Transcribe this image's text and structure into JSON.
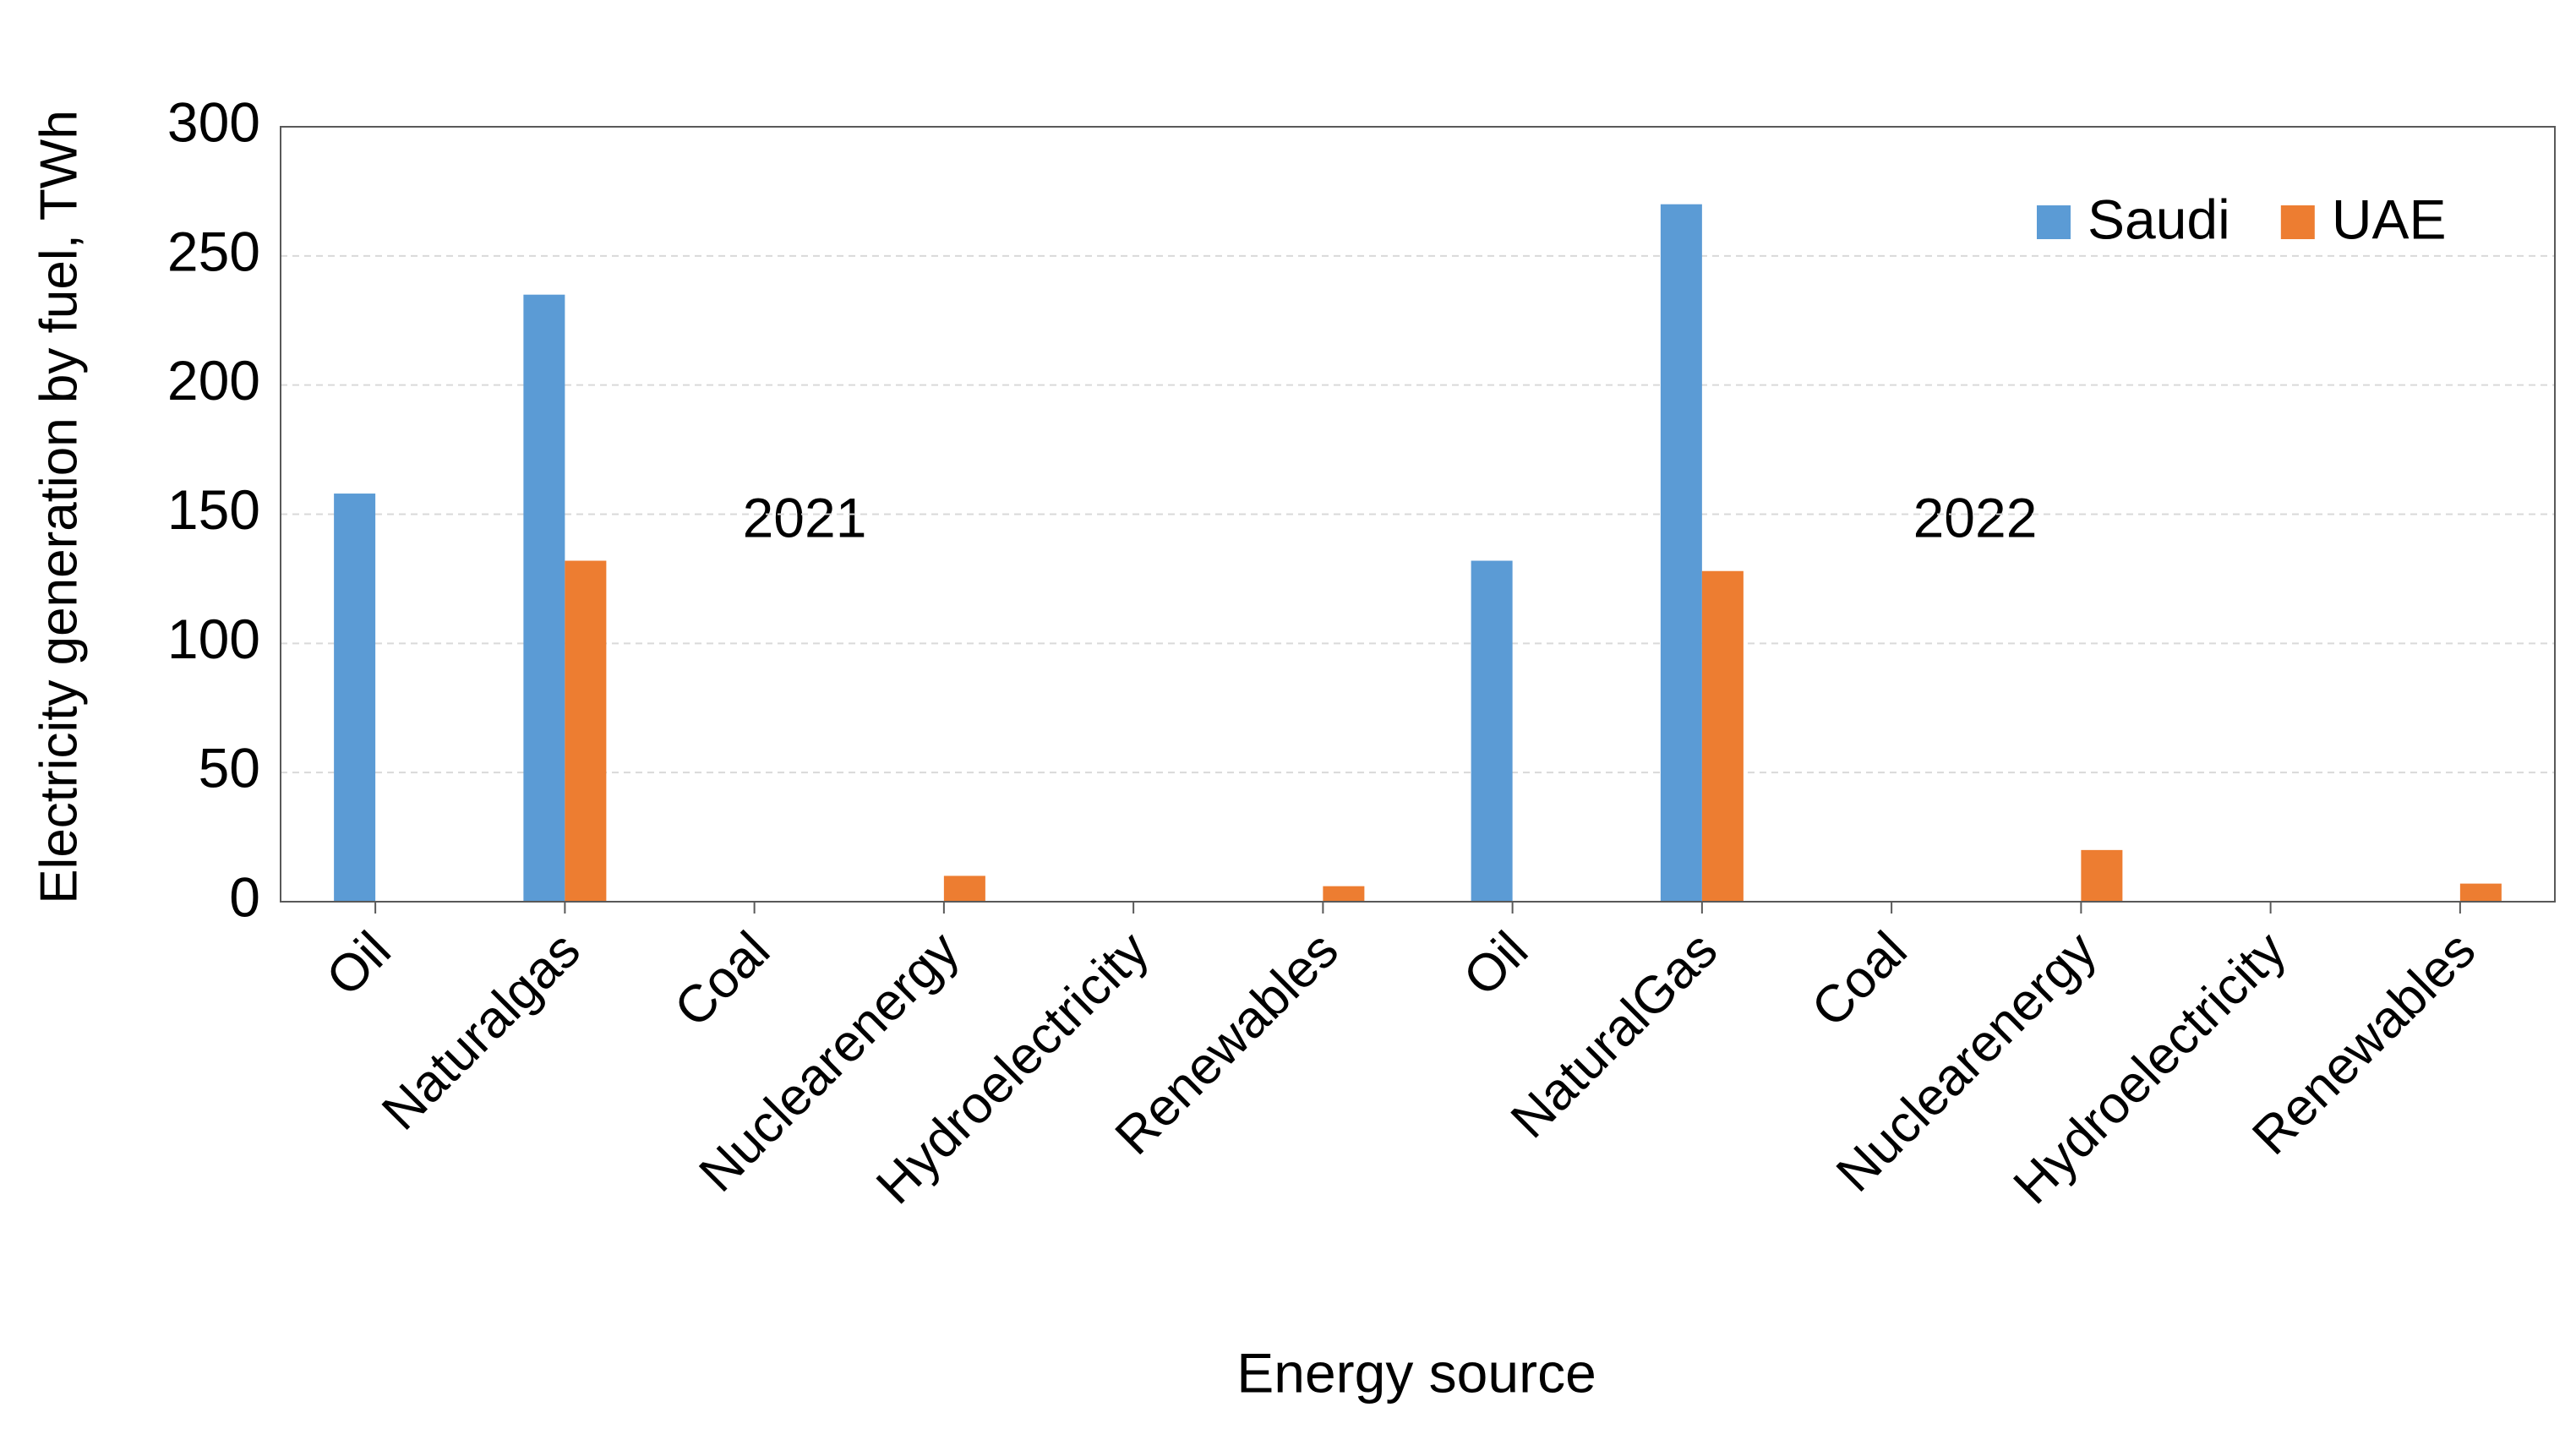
{
  "chart_data": {
    "type": "bar",
    "x_label": "Energy source",
    "y_label": "Electricity generation by  fuel, TWh",
    "annotations": [
      "2021",
      "2022"
    ],
    "categories": [
      "Oil",
      "Naturalgas",
      "Coal",
      "Nuclearenergy",
      "Hydroelectricity",
      "Renewables",
      "Oil",
      "NaturalGas",
      "Coal",
      "Nuclearenergy",
      "Hydroelectricity",
      "Renewables"
    ],
    "series": [
      {
        "name": "Saudi",
        "color": "#5b9bd5",
        "values": [
          158,
          235,
          0,
          0,
          0,
          0,
          132,
          270,
          0,
          0,
          0,
          0
        ]
      },
      {
        "name": "UAE",
        "color": "#ed7d31",
        "values": [
          0,
          132,
          0,
          10,
          0,
          6,
          0,
          128,
          0,
          20,
          0,
          7
        ]
      }
    ],
    "ylim": [
      0,
      300
    ],
    "yticks": [
      0,
      50,
      100,
      150,
      200,
      250,
      300
    ],
    "grid": true,
    "legend": "top-right"
  }
}
